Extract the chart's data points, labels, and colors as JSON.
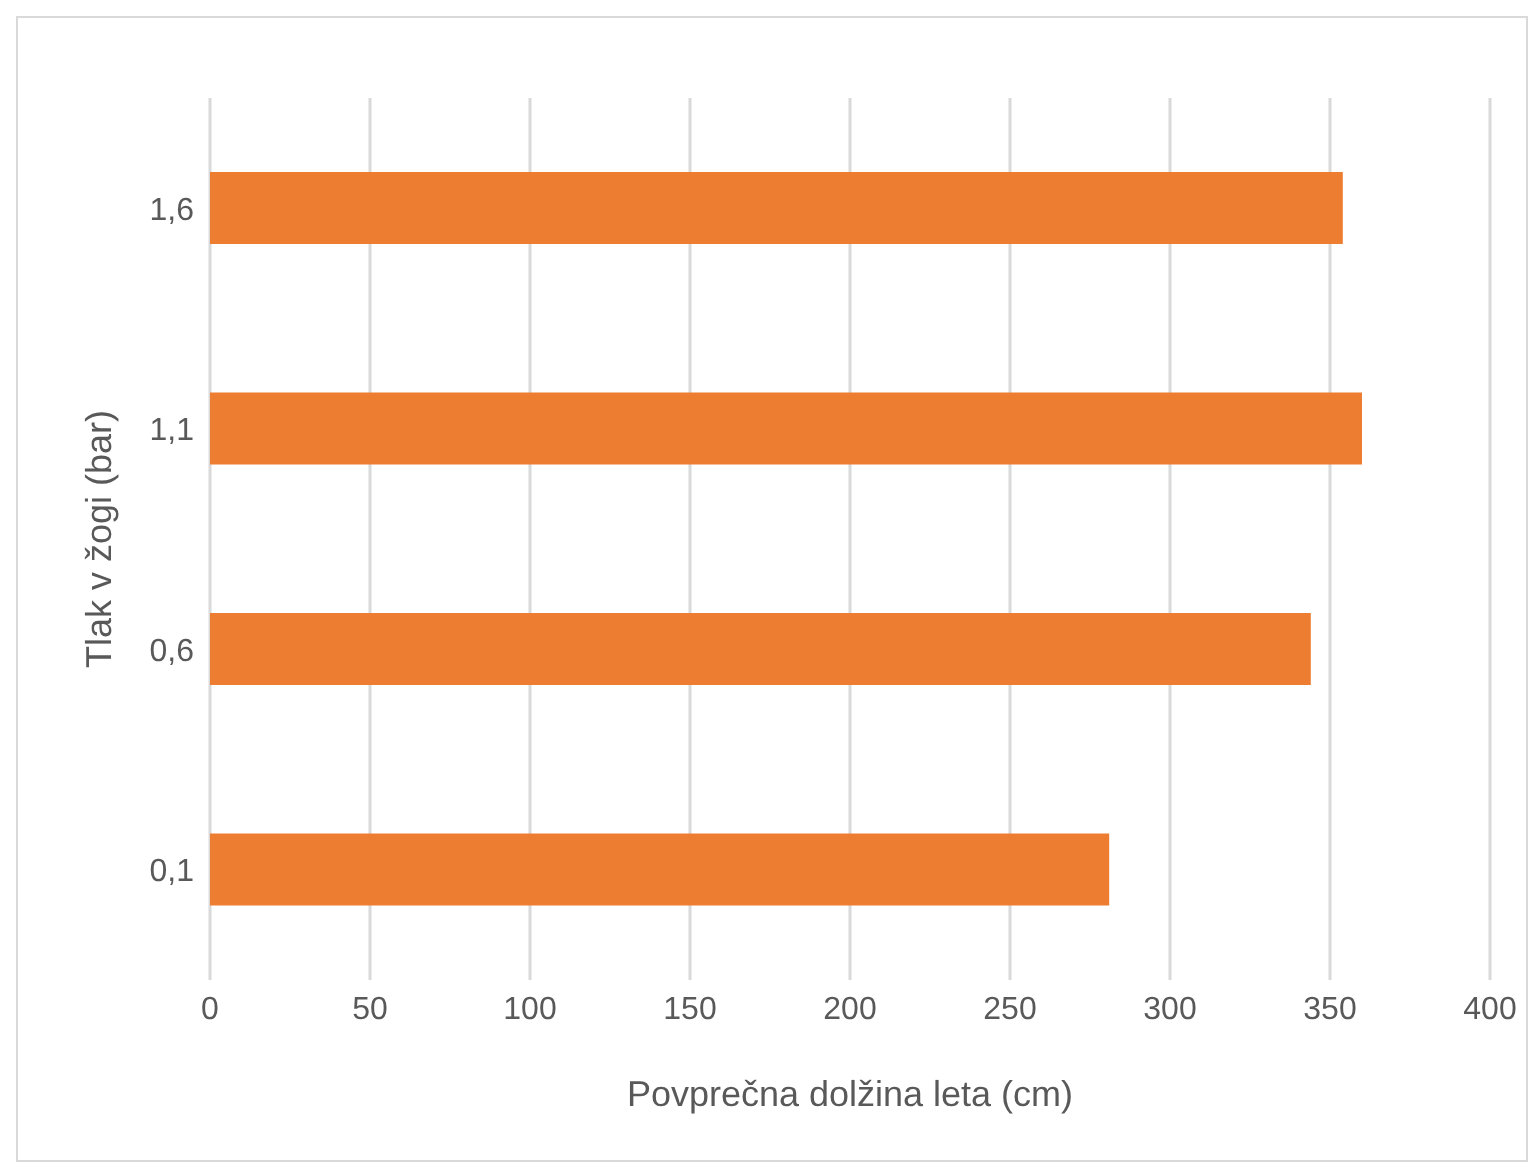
{
  "chart_data": {
    "type": "bar",
    "orientation": "horizontal",
    "xlabel": "Povprečna dolžina leta (cm)",
    "ylabel": "Tlak v žogi (bar)",
    "categories": [
      "1,6",
      "1,1",
      "0,6",
      "0,1"
    ],
    "values": [
      354,
      360,
      344,
      281
    ],
    "color": "#ed7d31",
    "xlim": [
      0,
      400
    ],
    "xticks": [
      0,
      50,
      100,
      150,
      200,
      250,
      300,
      350,
      400
    ],
    "grid": "x"
  }
}
